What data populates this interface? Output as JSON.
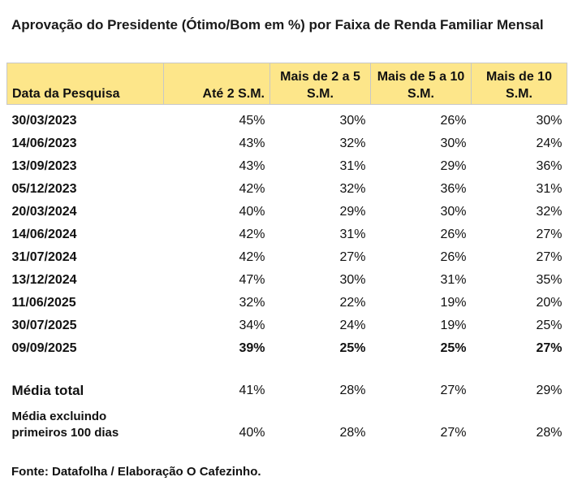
{
  "title": "Aprovação do Presidente (Ótimo/Bom em %) por Faixa de Renda Familiar Mensal",
  "source": "Fonte: Datafolha / Elaboração O Cafezinho.",
  "colors": {
    "header_background": "#fde68a",
    "header_border": "#c7c7c7",
    "text": "#111111"
  },
  "chart_data": {
    "type": "table",
    "title": "Aprovação do Presidente (Ótimo/Bom em %) por Faixa de Renda Familiar Mensal",
    "columns": [
      "Data da Pesquisa",
      "Até 2 S.M.",
      "Mais de 2 a 5 S.M.",
      "Mais de 5 a 10 S.M.",
      "Mais de 10 S.M."
    ],
    "rows": [
      {
        "date": "30/03/2023",
        "values": [
          "45%",
          "30%",
          "26%",
          "30%"
        ]
      },
      {
        "date": "14/06/2023",
        "values": [
          "43%",
          "32%",
          "30%",
          "24%"
        ]
      },
      {
        "date": "13/09/2023",
        "values": [
          "43%",
          "31%",
          "29%",
          "36%"
        ]
      },
      {
        "date": "05/12/2023",
        "values": [
          "42%",
          "32%",
          "36%",
          "31%"
        ]
      },
      {
        "date": "20/03/2024",
        "values": [
          "40%",
          "29%",
          "30%",
          "32%"
        ]
      },
      {
        "date": "14/06/2024",
        "values": [
          "42%",
          "31%",
          "26%",
          "27%"
        ]
      },
      {
        "date": "31/07/2024",
        "values": [
          "42%",
          "27%",
          "26%",
          "27%"
        ]
      },
      {
        "date": "13/12/2024",
        "values": [
          "47%",
          "30%",
          "31%",
          "35%"
        ]
      },
      {
        "date": "11/06/2025",
        "values": [
          "32%",
          "22%",
          "19%",
          "20%"
        ]
      },
      {
        "date": "30/07/2025",
        "values": [
          "34%",
          "24%",
          "19%",
          "25%"
        ]
      },
      {
        "date": "09/09/2025",
        "values": [
          "39%",
          "25%",
          "25%",
          "27%"
        ]
      }
    ],
    "summary": [
      {
        "label": "Média total",
        "values": [
          "41%",
          "28%",
          "27%",
          "29%"
        ]
      },
      {
        "label": "Média excluindo primeiros 100 dias",
        "values": [
          "40%",
          "28%",
          "27%",
          "28%"
        ]
      }
    ]
  }
}
